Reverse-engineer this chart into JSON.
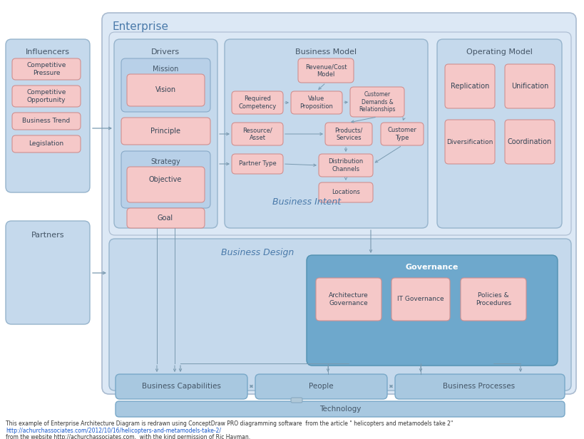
{
  "caption1": "This example of Enterprise Architecture Diagram is redrawn using ConceptDraw PRO diagramming software  from the article \" helicopters and metamodels take 2\"",
  "caption2": "http://achurchassociates.com/2012/10/16/helicopters-and-metamodels-take-2/",
  "caption3": "from the website http://achurchassociates.com,  with the kind permission of Ric Hayman.",
  "colors": {
    "bg": "#ffffff",
    "enterprise_fill": "#dce8f5",
    "enterprise_edge": "#aabbd0",
    "panel_fill": "#c5d9ec",
    "panel_edge": "#96b4cc",
    "subpanel_fill": "#b8d0e8",
    "subpanel_edge": "#88aac8",
    "gov_fill": "#6ea8cc",
    "gov_edge": "#5090b0",
    "bottom_fill": "#a8c8e0",
    "bottom_edge": "#78a8c8",
    "pink_fill": "#f5c8c8",
    "pink_edge": "#d09090",
    "arrow": "#7a9ab0",
    "title_blue": "#4a7aaa",
    "text_dark": "#445566",
    "text_body": "#334455"
  }
}
